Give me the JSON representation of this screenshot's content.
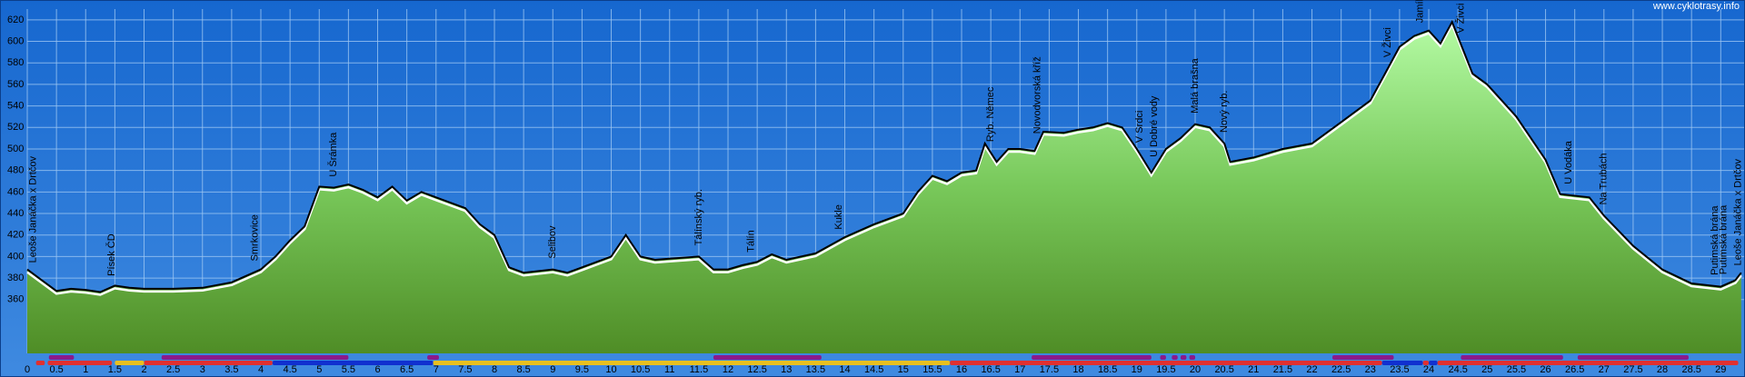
{
  "chart_data": {
    "type": "area",
    "credit": "www.cyklotrasy.info",
    "x": [
      0,
      0.25,
      0.5,
      0.75,
      1,
      1.25,
      1.5,
      1.75,
      2,
      2.5,
      3,
      3.5,
      4,
      4.25,
      4.5,
      4.75,
      5,
      5.25,
      5.5,
      5.75,
      6,
      6.25,
      6.5,
      6.75,
      7,
      7.5,
      7.75,
      8,
      8.25,
      8.5,
      9,
      9.25,
      9.5,
      10,
      10.25,
      10.5,
      10.75,
      11,
      11.5,
      11.75,
      12,
      12.25,
      12.5,
      12.75,
      13,
      13.5,
      14,
      14.5,
      15,
      15.25,
      15.5,
      15.75,
      16,
      16.25,
      16.4,
      16.6,
      16.8,
      17,
      17.25,
      17.4,
      17.75,
      18,
      18.25,
      18.5,
      18.75,
      19,
      19.25,
      19.5,
      19.75,
      20,
      20.25,
      20.5,
      20.6,
      21,
      21.5,
      22,
      22.5,
      23,
      23.25,
      23.5,
      23.75,
      24,
      24.2,
      24.4,
      24.75,
      25,
      25.5,
      26,
      26.25,
      26.75,
      27,
      27.5,
      28,
      28.5,
      29,
      29.25,
      29.35
    ],
    "values": [
      388,
      378,
      368,
      370,
      369,
      367,
      373,
      371,
      370,
      370,
      371,
      376,
      388,
      400,
      415,
      428,
      465,
      464,
      467,
      462,
      455,
      465,
      452,
      460,
      455,
      445,
      430,
      420,
      390,
      385,
      388,
      385,
      390,
      400,
      420,
      400,
      397,
      398,
      400,
      388,
      388,
      392,
      395,
      402,
      397,
      403,
      418,
      430,
      440,
      460,
      475,
      470,
      478,
      480,
      505,
      488,
      500,
      500,
      498,
      516,
      515,
      518,
      520,
      524,
      520,
      500,
      478,
      500,
      510,
      523,
      520,
      505,
      488,
      492,
      500,
      505,
      525,
      545,
      570,
      595,
      605,
      610,
      598,
      618,
      570,
      560,
      530,
      490,
      458,
      455,
      438,
      410,
      388,
      375,
      372,
      378,
      385
    ],
    "color": "#000000",
    "xlim": [
      0,
      29.4
    ],
    "ylim": [
      310,
      630
    ],
    "xticks": [
      0,
      0.5,
      1,
      1.5,
      2,
      2.5,
      3,
      3.5,
      4,
      4.5,
      5,
      5.5,
      6,
      6.5,
      7,
      7.5,
      8,
      8.5,
      9,
      9.5,
      10,
      10.5,
      11,
      11.5,
      12,
      12.5,
      13,
      13.5,
      14,
      14.5,
      15,
      15.5,
      16,
      16.5,
      17,
      17.5,
      18,
      18.5,
      19,
      19.5,
      20,
      20.5,
      21,
      21.5,
      22,
      22.5,
      23,
      23.5,
      24,
      24.5,
      25,
      25.5,
      26,
      26.5,
      27,
      27.5,
      28,
      28.5,
      29
    ],
    "yticks": [
      360,
      380,
      400,
      420,
      440,
      460,
      480,
      500,
      520,
      540,
      560,
      580,
      600,
      620
    ],
    "grid": true,
    "annotations": [
      {
        "text": "Leoše Janáčka x Drtčov",
        "x": 0.1
      },
      {
        "text": "Písek ČD",
        "x": 1.45
      },
      {
        "text": "Smrkovice",
        "x": 3.9
      },
      {
        "text": "U Šrámka",
        "x": 5.25
      },
      {
        "text": "Selibov",
        "x": 9.0
      },
      {
        "text": "Tálínský ryb.",
        "x": 11.5
      },
      {
        "text": "Tálín",
        "x": 12.4
      },
      {
        "text": "Kukle",
        "x": 13.9
      },
      {
        "text": "Ryb. Němec",
        "x": 16.5
      },
      {
        "text": "Novodvorská kříž",
        "x": 17.3
      },
      {
        "text": "V Srdci",
        "x": 19.05
      },
      {
        "text": "U Dobré vody",
        "x": 19.3
      },
      {
        "text": "Malá brašna",
        "x": 20.0
      },
      {
        "text": "Nový ryb.",
        "x": 20.5
      },
      {
        "text": "V Živci",
        "x": 23.3
      },
      {
        "text": "Jamík",
        "x": 23.85
      },
      {
        "text": "V Živci",
        "x": 24.55
      },
      {
        "text": "U Vodáka",
        "x": 26.4
      },
      {
        "text": "Na Trubách",
        "x": 27.0
      },
      {
        "text": "Putimská brána",
        "x": 28.9
      },
      {
        "text": "Putimská brána",
        "x": 29.05
      },
      {
        "text": "Leoše Janáčka x Drtčov",
        "x": 29.3
      }
    ],
    "track_top": [
      {
        "from": 0.37,
        "to": 0.8,
        "color": "#8b1a8b"
      },
      {
        "from": 2.3,
        "to": 5.5,
        "color": "#8b1a8b"
      },
      {
        "from": 6.85,
        "to": 7.05,
        "color": "#8b1a8b"
      },
      {
        "from": 11.75,
        "to": 13.6,
        "color": "#8b1a8b"
      },
      {
        "from": 17.2,
        "to": 19.25,
        "color": "#8b1a8b"
      },
      {
        "from": 19.4,
        "to": 19.5,
        "color": "#8b1a8b"
      },
      {
        "from": 19.6,
        "to": 19.7,
        "color": "#8b1a8b"
      },
      {
        "from": 19.75,
        "to": 19.85,
        "color": "#8b1a8b"
      },
      {
        "from": 19.9,
        "to": 20.0,
        "color": "#8b1a8b"
      },
      {
        "from": 22.35,
        "to": 23.4,
        "color": "#8b1a8b"
      },
      {
        "from": 24.55,
        "to": 26.3,
        "color": "#8b1a8b"
      },
      {
        "from": 26.55,
        "to": 28.45,
        "color": "#8b1a8b"
      }
    ],
    "track_bottom": [
      {
        "from": 0.15,
        "to": 0.3,
        "color": "#e03030"
      },
      {
        "from": 0.35,
        "to": 1.45,
        "color": "#e03030"
      },
      {
        "from": 1.5,
        "to": 2.0,
        "color": "#e8c020"
      },
      {
        "from": 2.0,
        "to": 4.2,
        "color": "#e03030"
      },
      {
        "from": 4.2,
        "to": 6.95,
        "color": "#1030d0"
      },
      {
        "from": 6.95,
        "to": 15.8,
        "color": "#e8c020"
      },
      {
        "from": 15.8,
        "to": 23.2,
        "color": "#e03030"
      },
      {
        "from": 23.2,
        "to": 23.9,
        "color": "#1030d0"
      },
      {
        "from": 23.9,
        "to": 24.0,
        "color": "#e03030"
      },
      {
        "from": 24.0,
        "to": 24.15,
        "color": "#1030d0"
      },
      {
        "from": 24.15,
        "to": 29.3,
        "color": "#e03030"
      }
    ]
  }
}
